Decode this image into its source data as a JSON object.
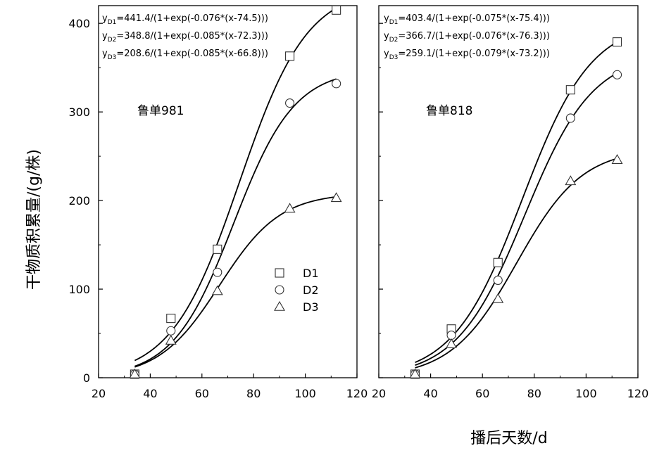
{
  "ylabel": "干物质积累量/(g/株)",
  "xlabel": "播后天数/d",
  "legend": {
    "position": "left-panel-center-right",
    "entries": [
      "D1",
      "D2",
      "D3"
    ]
  },
  "chart_data": [
    {
      "type": "scatter",
      "variety": "鲁单981",
      "xlim": [
        20,
        120
      ],
      "ylim": [
        0,
        420
      ],
      "xticks": [
        "20",
        "40",
        "60",
        "80",
        "100",
        "120"
      ],
      "yticks": [
        "0",
        "100",
        "200",
        "300",
        "400"
      ],
      "equations": [
        {
          "prefix": "y",
          "sub": "D1",
          "text": "=441.4/(1+exp(-0.076*(x-74.5)))"
        },
        {
          "prefix": "y",
          "sub": "D2",
          "text": "=348.8/(1+exp(-0.085*(x-72.3)))"
        },
        {
          "prefix": "y",
          "sub": "D3",
          "text": "=208.6/(1+exp(-0.085*(x-66.8)))"
        }
      ],
      "series": [
        {
          "name": "D1",
          "marker": "square",
          "a": 441.4,
          "b": 0.076,
          "c": 74.5,
          "x": [
            34,
            48,
            66,
            94,
            112
          ],
          "y": [
            4,
            67,
            145,
            363,
            415
          ]
        },
        {
          "name": "D2",
          "marker": "circle",
          "a": 348.8,
          "b": 0.085,
          "c": 72.3,
          "x": [
            34,
            48,
            66,
            94,
            112
          ],
          "y": [
            4,
            53,
            119,
            310,
            332
          ]
        },
        {
          "name": "D3",
          "marker": "triangle",
          "a": 208.6,
          "b": 0.085,
          "c": 66.8,
          "x": [
            34,
            48,
            66,
            94,
            112
          ],
          "y": [
            4,
            42,
            98,
            191,
            203
          ]
        }
      ]
    },
    {
      "type": "scatter",
      "variety": "鲁单818",
      "xlim": [
        20,
        120
      ],
      "ylim": [
        0,
        420
      ],
      "xticks": [
        "20",
        "40",
        "60",
        "80",
        "100",
        "120"
      ],
      "yticks": [],
      "equations": [
        {
          "prefix": "y",
          "sub": "D1",
          "text": "=403.4/(1+exp(-0.075*(x-75.4)))"
        },
        {
          "prefix": "y",
          "sub": "D2",
          "text": "=366.7/(1+exp(-0.076*(x-76.3)))"
        },
        {
          "prefix": "y",
          "sub": "D3",
          "text": "=259.1/(1+exp(-0.079*(x-73.2)))"
        }
      ],
      "series": [
        {
          "name": "D1",
          "marker": "square",
          "a": 403.4,
          "b": 0.075,
          "c": 75.4,
          "x": [
            34,
            48,
            66,
            94,
            112
          ],
          "y": [
            4,
            55,
            130,
            325,
            379
          ]
        },
        {
          "name": "D2",
          "marker": "circle",
          "a": 366.7,
          "b": 0.076,
          "c": 76.3,
          "x": [
            34,
            48,
            66,
            94,
            112
          ],
          "y": [
            4,
            48,
            110,
            293,
            342
          ]
        },
        {
          "name": "D3",
          "marker": "triangle",
          "a": 259.1,
          "b": 0.079,
          "c": 73.2,
          "x": [
            34,
            48,
            66,
            94,
            112
          ],
          "y": [
            4,
            38,
            89,
            222,
            246
          ]
        }
      ]
    }
  ]
}
